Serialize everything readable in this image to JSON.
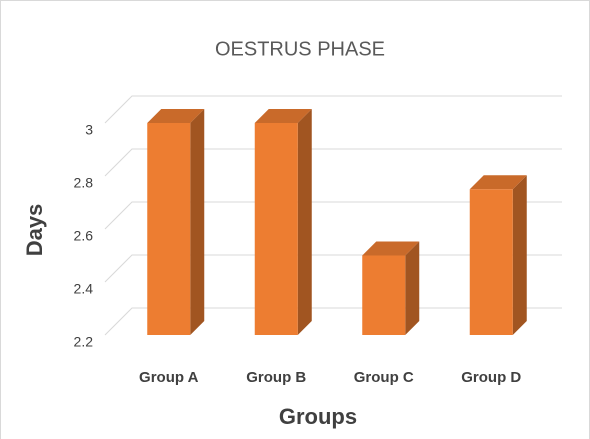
{
  "chart_data": {
    "type": "bar",
    "title": "OESTRUS PHASE",
    "x_label": "Groups",
    "y_label": "Days",
    "categories": [
      "Group A",
      "Group B",
      "Group C",
      "Group D"
    ],
    "values": [
      3,
      3,
      2.5,
      2.75
    ],
    "color": "#ED7D31",
    "ylim": [
      2.2,
      3
    ],
    "yticks": [
      2.2,
      2.4,
      2.6,
      2.8,
      3
    ],
    "grid": true
  }
}
